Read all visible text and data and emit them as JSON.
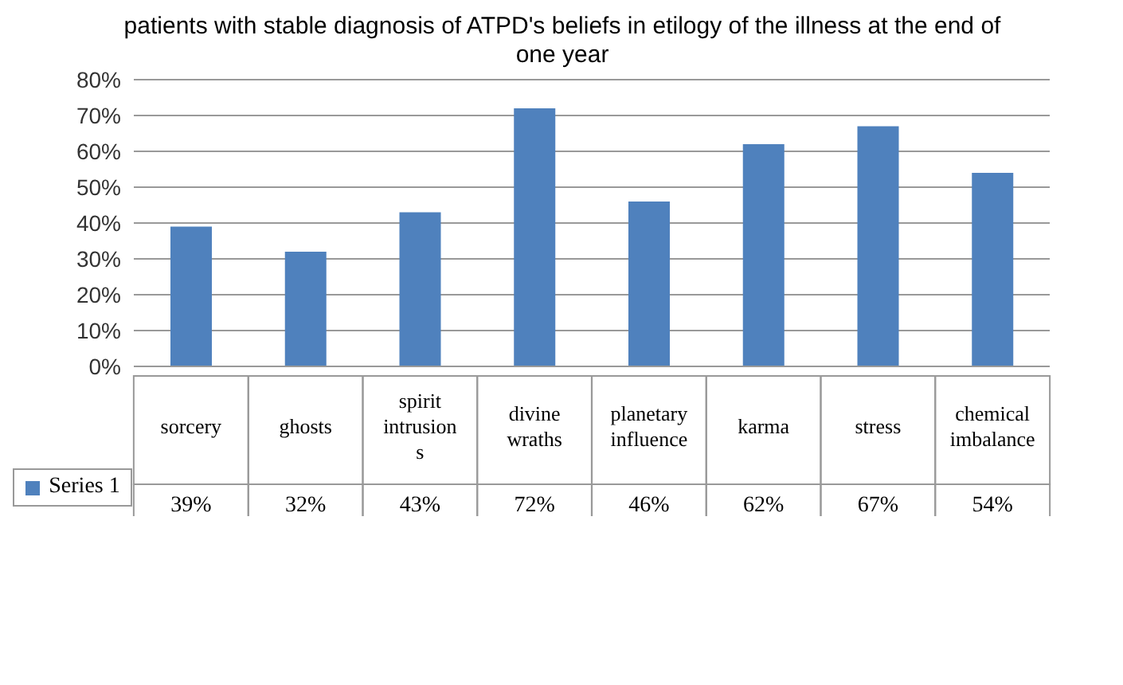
{
  "chart_data": {
    "type": "bar",
    "title": "patients with stable diagnosis of ATPD's beliefs in etilogy of the illness at the end of one year",
    "categories": [
      "sorcery",
      "ghosts",
      "spirit intrusion s",
      "divine wraths",
      "planetary influence",
      "karma",
      "stress",
      "chemical imbalance"
    ],
    "series": [
      {
        "name": "Series 1",
        "color": "#4f81bd",
        "values": [
          39,
          32,
          43,
          72,
          46,
          62,
          67,
          54
        ],
        "value_labels": [
          "39%",
          "32%",
          "43%",
          "72%",
          "46%",
          "62%",
          "67%",
          "54%"
        ]
      }
    ],
    "ylim": [
      0,
      80
    ],
    "yticks": [
      {
        "value": 0,
        "label": "0%"
      },
      {
        "value": 10,
        "label": "10%"
      },
      {
        "value": 20,
        "label": "20%"
      },
      {
        "value": 30,
        "label": "30%"
      },
      {
        "value": 40,
        "label": "40%"
      },
      {
        "value": 50,
        "label": "50%"
      },
      {
        "value": 60,
        "label": "60%"
      },
      {
        "value": 70,
        "label": "70%"
      },
      {
        "value": 80,
        "label": "80%"
      }
    ],
    "grid": "y",
    "legend": "bottom left"
  }
}
